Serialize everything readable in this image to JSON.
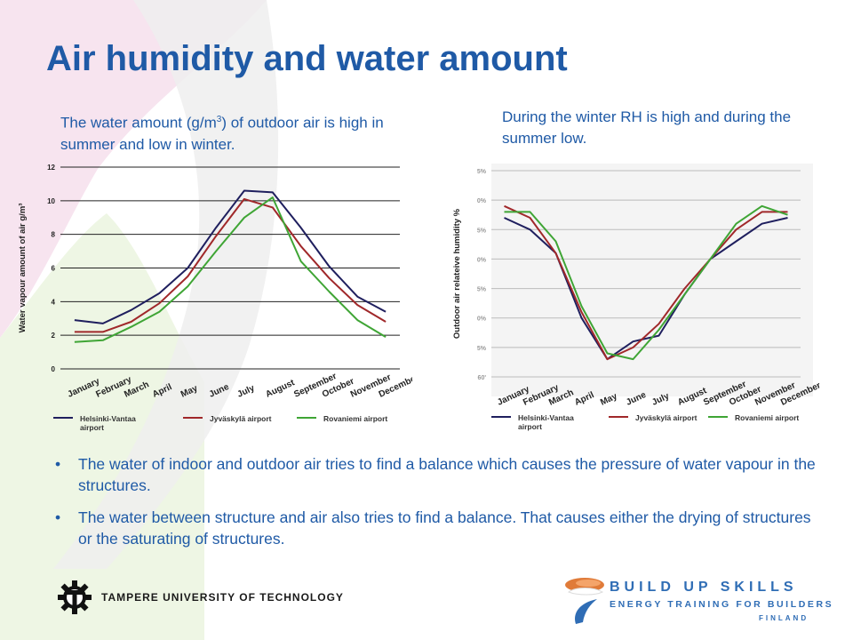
{
  "slide": {
    "title": "Air humidity and water amount",
    "caption_left_pre": "The water amount (g/m",
    "caption_left_sup": "3",
    "caption_left_post": ") of outdoor air is high in summer and low in winter.",
    "caption_right": "During the winter RH is high and during the summer low.",
    "bullets": [
      "The water of indoor and outdoor air tries to find a balance which causes the pressure of water vapour in the structures.",
      "The water between structure and air also tries to find a balance. That causes either the drying of structures or  the saturating of structures."
    ],
    "bullet_glyph": "•"
  },
  "footer": {
    "university": "TAMPERE UNIVERSITY OF TECHNOLOGY",
    "logo_line1": "BUILD UP SKILLS",
    "logo_line2": "ENERGY TRAINING FOR BUILDERS",
    "logo_line3": "FINLAND"
  },
  "chart_data": [
    {
      "type": "line",
      "ylabel": "Water vapour amount of air g/m³",
      "ylim": [
        0,
        12
      ],
      "yticks": [
        "0",
        "2",
        "4",
        "6",
        "8",
        "10",
        "12"
      ],
      "grid": true,
      "legend_position": "bottom",
      "categories": [
        "January",
        "February",
        "March",
        "April",
        "May",
        "June",
        "July",
        "August",
        "September",
        "October",
        "November",
        "December"
      ],
      "series": [
        {
          "name": "Helsinki-Vantaa airport",
          "color": "#1f1f5e",
          "values": [
            2.9,
            2.7,
            3.5,
            4.5,
            6.0,
            8.4,
            10.6,
            10.5,
            8.4,
            6.1,
            4.3,
            3.4
          ]
        },
        {
          "name": "Jyväskylä airport",
          "color": "#a0282a",
          "values": [
            2.2,
            2.2,
            2.8,
            3.9,
            5.5,
            7.9,
            10.1,
            9.6,
            7.3,
            5.4,
            3.8,
            2.8
          ]
        },
        {
          "name": "Rovaniemi airport",
          "color": "#3fa535",
          "values": [
            1.6,
            1.7,
            2.5,
            3.4,
            4.9,
            7.0,
            9.0,
            10.2,
            6.4,
            4.6,
            2.9,
            1.9
          ]
        }
      ]
    },
    {
      "type": "line",
      "ylabel": "Outdoor air relateive humidity %",
      "ytick_labels": [
        "60'",
        "5%",
        "0%",
        "5%",
        "0%",
        "5%",
        "0%",
        "5%"
      ],
      "grid": true,
      "legend_position": "bottom",
      "categories": [
        "January",
        "February",
        "March",
        "April",
        "May",
        "June",
        "July",
        "August",
        "September",
        "October",
        "November",
        "December"
      ],
      "series": [
        {
          "name": "Helsinki-Vantaa airport",
          "color": "#1f1f5e",
          "values": [
            87,
            85,
            81,
            70,
            63,
            66,
            67,
            74,
            80,
            83,
            86,
            87
          ]
        },
        {
          "name": "Jyväskylä airport",
          "color": "#a0282a",
          "values": [
            89,
            87,
            81,
            71,
            63,
            65,
            69,
            75,
            80,
            85,
            88,
            88
          ]
        },
        {
          "name": "Rovaniemi airport",
          "color": "#3fa535",
          "values": [
            88,
            88,
            83,
            72,
            64,
            63,
            68,
            74,
            80,
            86,
            89,
            87.5
          ]
        }
      ]
    }
  ]
}
